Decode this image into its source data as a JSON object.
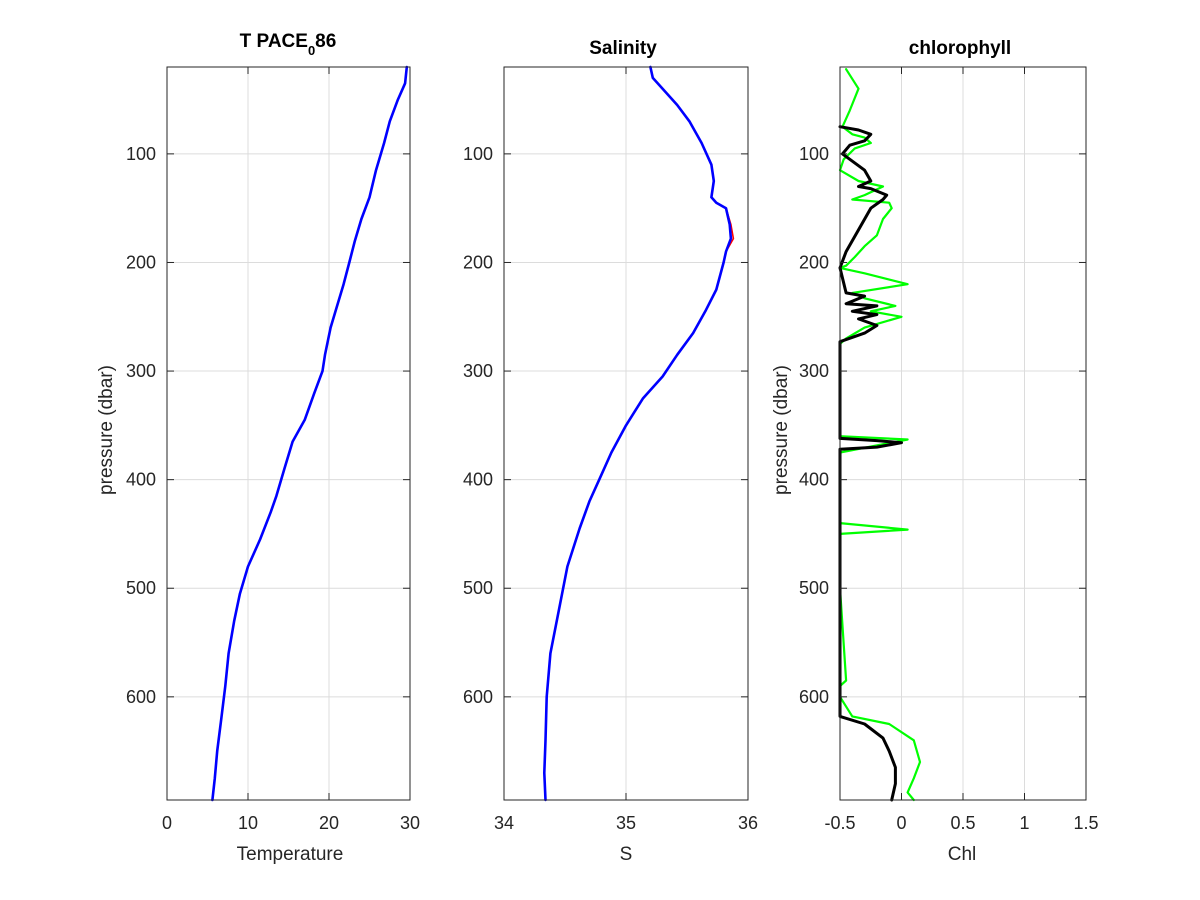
{
  "colors": {
    "profile_line": "#0000ff",
    "salinity_raw": "#ff0000",
    "chl_raw": "#00ff00",
    "chl_smooth": "#000000",
    "axes": "#262626",
    "grid": "#dcdcdc"
  },
  "chart_data": [
    {
      "type": "line",
      "title_main": "T PACE",
      "title_sub": "0",
      "title_tail": "86",
      "xlabel": "Temperature",
      "ylabel": "pressure (dbar)",
      "xlim": [
        0,
        30
      ],
      "ylim": [
        20,
        695
      ],
      "y_reversed": true,
      "grid": true,
      "xticks": [
        0,
        10,
        20,
        30
      ],
      "yticks": [
        100,
        200,
        300,
        400,
        500,
        600
      ],
      "series": [
        {
          "style": "profile",
          "x": [
            29.6,
            29.4,
            28.5,
            27.5,
            26.8,
            25.8,
            25,
            24,
            23.2,
            22.5,
            21.8,
            21,
            20.2,
            19.5,
            19.2,
            18.2,
            17,
            15.5,
            14.5,
            13.5,
            12.8,
            11.5,
            10,
            9,
            8.3,
            7.6,
            7.2,
            6.7,
            6.2,
            5.9,
            5.6
          ],
          "y": [
            20,
            35,
            50,
            70,
            90,
            115,
            140,
            160,
            180,
            200,
            220,
            240,
            260,
            285,
            300,
            320,
            345,
            365,
            390,
            415,
            430,
            455,
            480,
            505,
            530,
            560,
            590,
            620,
            650,
            675,
            695
          ]
        }
      ]
    },
    {
      "type": "line",
      "title": "Salinity",
      "xlabel": "S",
      "ylabel": "",
      "xlim": [
        34,
        36
      ],
      "ylim": [
        20,
        695
      ],
      "y_reversed": true,
      "grid": true,
      "xticks": [
        34,
        35,
        36
      ],
      "yticks": [
        100,
        200,
        300,
        400,
        500,
        600
      ],
      "series": [
        {
          "style": "raw",
          "x": [
            35.2,
            35.22,
            35.3,
            35.42,
            35.52,
            35.62,
            35.7,
            35.72,
            35.7,
            35.74,
            35.82,
            35.86,
            35.88,
            35.82,
            35.8,
            35.74,
            35.65,
            35.55,
            35.42,
            35.3,
            35.14,
            35.0,
            34.88,
            34.78,
            34.7,
            34.62,
            34.52,
            34.45,
            34.38,
            34.35,
            34.34,
            34.33,
            34.34
          ],
          "y": [
            20,
            30,
            40,
            55,
            70,
            90,
            110,
            125,
            140,
            145,
            150,
            165,
            178,
            190,
            200,
            225,
            245,
            265,
            285,
            305,
            325,
            350,
            375,
            400,
            420,
            445,
            480,
            520,
            560,
            600,
            640,
            670,
            695
          ]
        },
        {
          "style": "profile",
          "x": [
            35.2,
            35.22,
            35.3,
            35.42,
            35.52,
            35.62,
            35.7,
            35.72,
            35.7,
            35.74,
            35.82,
            35.85,
            35.86,
            35.82,
            35.8,
            35.74,
            35.65,
            35.55,
            35.42,
            35.3,
            35.14,
            35.0,
            34.88,
            34.78,
            34.7,
            34.62,
            34.52,
            34.45,
            34.38,
            34.35,
            34.34,
            34.33,
            34.34
          ],
          "y": [
            20,
            30,
            40,
            55,
            70,
            90,
            110,
            125,
            140,
            145,
            150,
            165,
            178,
            190,
            200,
            225,
            245,
            265,
            285,
            305,
            325,
            350,
            375,
            400,
            420,
            445,
            480,
            520,
            560,
            600,
            640,
            670,
            695
          ]
        }
      ]
    },
    {
      "type": "line",
      "title": "chlorophyll",
      "xlabel": "Chl",
      "ylabel": "pressure (dbar)",
      "xlim": [
        -0.5,
        1.5
      ],
      "ylim": [
        20,
        695
      ],
      "y_reversed": true,
      "grid": true,
      "xticks": [
        -0.5,
        0,
        0.5,
        1,
        1.5
      ],
      "yticks": [
        100,
        200,
        300,
        400,
        500,
        600
      ],
      "series": [
        {
          "style": "raw",
          "x": [
            -0.45,
            -0.35,
            -0.42,
            -0.48,
            -0.4,
            -0.3,
            -0.25,
            -0.38,
            -0.47,
            -0.5,
            -0.35,
            -0.15,
            -0.3,
            -0.4,
            -0.1,
            -0.08,
            -0.15,
            -0.2,
            -0.3,
            -0.38,
            -0.45,
            -0.5,
            -0.3,
            0.05,
            -0.4,
            -0.3,
            -0.05,
            -0.25,
            0.0,
            -0.3,
            -0.45,
            -0.5,
            -0.5,
            -0.5,
            0.05,
            -0.5,
            -0.5,
            -0.5,
            0.05,
            -0.5,
            -0.5,
            -0.45,
            -0.5,
            -0.5,
            -0.4,
            -0.1,
            0.1,
            0.15,
            0.1,
            0.05,
            0.1
          ],
          "y": [
            22,
            40,
            60,
            75,
            82,
            85,
            90,
            95,
            105,
            115,
            125,
            130,
            138,
            142,
            145,
            150,
            160,
            175,
            185,
            195,
            203,
            205,
            210,
            220,
            228,
            233,
            240,
            245,
            250,
            260,
            270,
            275,
            290,
            360,
            363,
            375,
            380,
            440,
            446,
            450,
            500,
            585,
            590,
            600,
            618,
            625,
            640,
            660,
            675,
            688,
            695
          ]
        },
        {
          "style": "smooth",
          "x": [
            -0.5,
            -0.35,
            -0.25,
            -0.3,
            -0.42,
            -0.48,
            -0.3,
            -0.25,
            -0.35,
            -0.25,
            -0.12,
            -0.15,
            -0.25,
            -0.35,
            -0.45,
            -0.5,
            -0.45,
            -0.3,
            -0.45,
            -0.2,
            -0.4,
            -0.2,
            -0.35,
            -0.2,
            -0.3,
            -0.5,
            -0.5,
            -0.2,
            0.0,
            -0.2,
            -0.5,
            -0.5,
            -0.3,
            -0.15,
            -0.1,
            -0.05,
            -0.05,
            -0.08
          ],
          "y": [
            75,
            78,
            82,
            88,
            92,
            100,
            115,
            125,
            130,
            132,
            138,
            142,
            150,
            170,
            190,
            205,
            228,
            231,
            238,
            240,
            245,
            248,
            252,
            258,
            265,
            273,
            362,
            364,
            366,
            370,
            372,
            618,
            625,
            638,
            650,
            665,
            680,
            695
          ]
        }
      ]
    }
  ]
}
